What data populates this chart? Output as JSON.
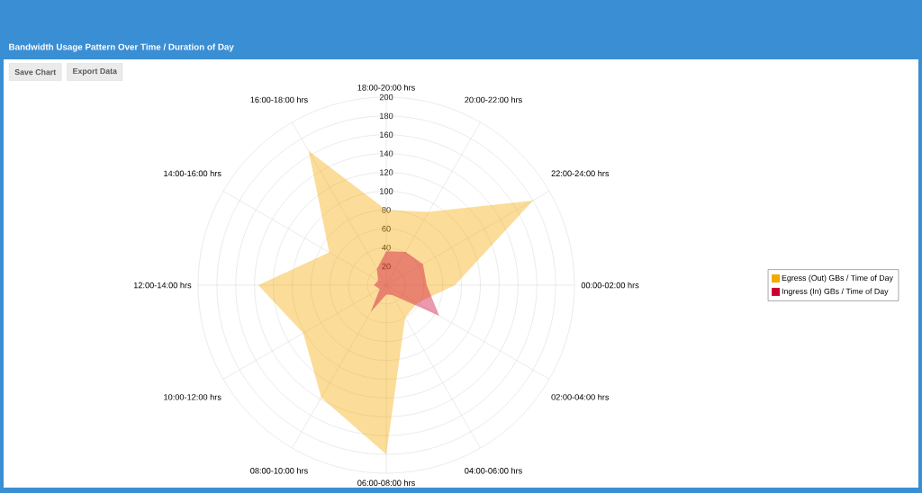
{
  "chart_data": {
    "type": "radar",
    "title": "Bandwidth Usage Pattern Over Time / Duration of Day",
    "annotations": [
      "Save Chart",
      "Export Data"
    ],
    "categories": [
      "18:00-20:00 hrs",
      "20:00-22:00 hrs",
      "22:00-24:00 hrs",
      "00:00-02:00 hrs",
      "02:00-04:00 hrs",
      "04:00-06:00 hrs",
      "06:00-08:00 hrs",
      "08:00-10:00 hrs",
      "10:00-12:00 hrs",
      "12:00-14:00 hrs",
      "14:00-16:00 hrs",
      "16:00-18:00 hrs"
    ],
    "series": [
      {
        "name": "Egress (Out) GBs / Time of Day",
        "color": "#f5a800",
        "values": [
          80,
          90,
          180,
          73,
          38,
          40,
          180,
          138,
          102,
          136,
          70,
          165
        ]
      },
      {
        "name": "Ingress (In) GBs / Time of Day",
        "color": "#cc0033",
        "values": [
          36,
          41,
          45,
          43,
          65,
          12,
          10,
          33,
          8,
          13,
          10,
          20
        ]
      }
    ],
    "ylim": [
      0,
      200
    ],
    "yticks": [
      20,
      40,
      60,
      80,
      100,
      120,
      140,
      160,
      180,
      200
    ],
    "grid": true,
    "legend": "right"
  }
}
